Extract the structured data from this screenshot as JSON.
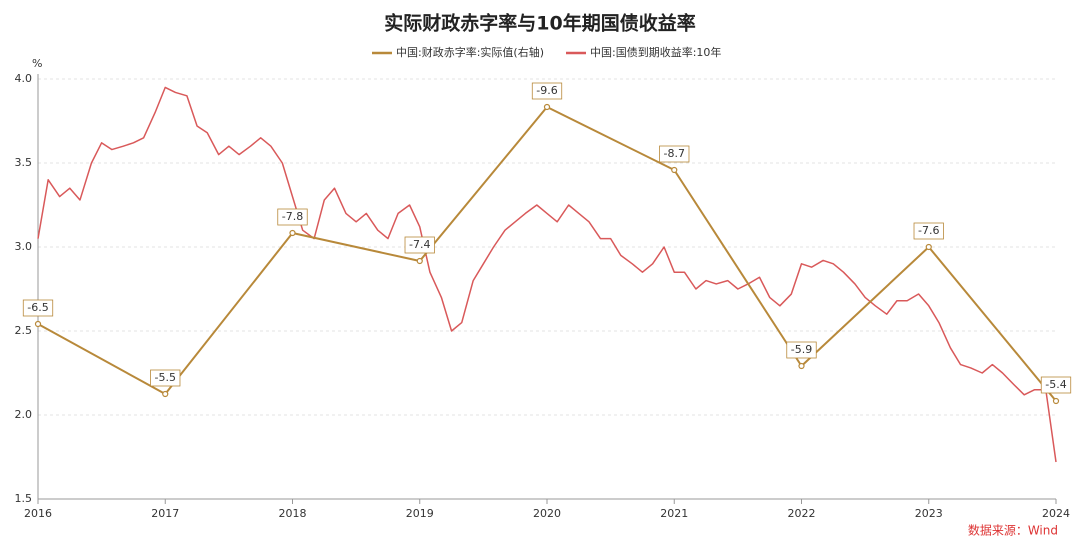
{
  "chart_data": {
    "type": "line",
    "title": "实际财政赤字率与10年期国债收益率",
    "y_label": "%",
    "source": "数据来源：Wind",
    "xlim": [
      2016,
      2024
    ],
    "xticks": [
      2016,
      2017,
      2018,
      2019,
      2020,
      2021,
      2022,
      2023,
      2024
    ],
    "ylim": [
      1.5,
      4.0
    ],
    "yticks": [
      {
        "value": 1.5,
        "label": "1.5"
      },
      {
        "value": 2.0,
        "label": "2.0"
      },
      {
        "value": 2.5,
        "label": "2.5"
      },
      {
        "value": 3.0,
        "label": "3.0"
      },
      {
        "value": 3.5,
        "label": "3.5"
      },
      {
        "value": 4.0,
        "label": "4.0"
      }
    ],
    "y2lim": [
      -4,
      -10
    ],
    "grid": true,
    "legend": "top",
    "series": [
      {
        "name": "中国:财政赤字率:实际值(右轴)",
        "color": "#b8893a",
        "axis": "y2",
        "data_labels": true,
        "x": [
          2016,
          2017,
          2018,
          2019,
          2020,
          2021,
          2022,
          2023,
          2024
        ],
        "values": [
          -6.5,
          -5.5,
          -7.8,
          -7.4,
          -9.6,
          -8.7,
          -5.9,
          -7.6,
          -5.4
        ]
      },
      {
        "name": "中国:国债到期收益率:10年",
        "color": "#d9595a",
        "x": [
          2016.0,
          2016.08,
          2016.17,
          2016.25,
          2016.33,
          2016.42,
          2016.5,
          2016.58,
          2016.67,
          2016.75,
          2016.83,
          2016.92,
          2017.0,
          2017.08,
          2017.17,
          2017.25,
          2017.33,
          2017.42,
          2017.5,
          2017.58,
          2017.67,
          2017.75,
          2017.83,
          2017.92,
          2018.0,
          2018.08,
          2018.17,
          2018.25,
          2018.33,
          2018.42,
          2018.5,
          2018.58,
          2018.67,
          2018.75,
          2018.83,
          2018.92,
          2019.0,
          2019.08,
          2019.17,
          2019.25,
          2019.33,
          2019.42,
          2019.5,
          2019.58,
          2019.67,
          2019.75,
          2019.83,
          2019.92,
          2020.0,
          2020.08,
          2020.17,
          2020.25,
          2020.33,
          2020.42,
          2020.5,
          2020.58,
          2020.67,
          2020.75,
          2020.83,
          2020.92,
          2021.0,
          2021.08,
          2021.17,
          2021.25,
          2021.33,
          2021.42,
          2021.5,
          2021.58,
          2021.67,
          2021.75,
          2021.83,
          2021.92,
          2022.0,
          2022.08,
          2022.17,
          2022.25,
          2022.33,
          2022.42,
          2022.5,
          2022.58,
          2022.67,
          2022.75,
          2022.83,
          2022.92,
          2023.0,
          2023.08,
          2023.17,
          2023.25,
          2023.33,
          2023.42,
          2023.5,
          2023.58,
          2023.67,
          2023.75,
          2023.83,
          2023.92,
          2024.0
        ],
        "values": [
          3.05,
          3.4,
          3.3,
          3.35,
          3.28,
          3.5,
          3.62,
          3.58,
          3.6,
          3.62,
          3.65,
          3.8,
          3.95,
          3.92,
          3.9,
          3.72,
          3.68,
          3.55,
          3.6,
          3.55,
          3.6,
          3.65,
          3.6,
          3.5,
          3.3,
          3.1,
          3.05,
          3.28,
          3.35,
          3.2,
          3.15,
          3.2,
          3.1,
          3.05,
          3.2,
          3.25,
          3.12,
          2.85,
          2.7,
          2.5,
          2.55,
          2.8,
          2.9,
          3.0,
          3.1,
          3.15,
          3.2,
          3.25,
          3.2,
          3.15,
          3.25,
          3.2,
          3.15,
          3.05,
          3.05,
          2.95,
          2.9,
          2.85,
          2.9,
          3.0,
          2.85,
          2.85,
          2.75,
          2.8,
          2.78,
          2.8,
          2.75,
          2.78,
          2.82,
          2.7,
          2.65,
          2.72,
          2.9,
          2.88,
          2.92,
          2.9,
          2.85,
          2.78,
          2.7,
          2.65,
          2.6,
          2.68,
          2.68,
          2.72,
          2.65,
          2.55,
          2.4,
          2.3,
          2.28,
          2.25,
          2.3,
          2.25,
          2.18,
          2.12,
          2.15,
          2.15,
          1.72
        ]
      }
    ]
  }
}
